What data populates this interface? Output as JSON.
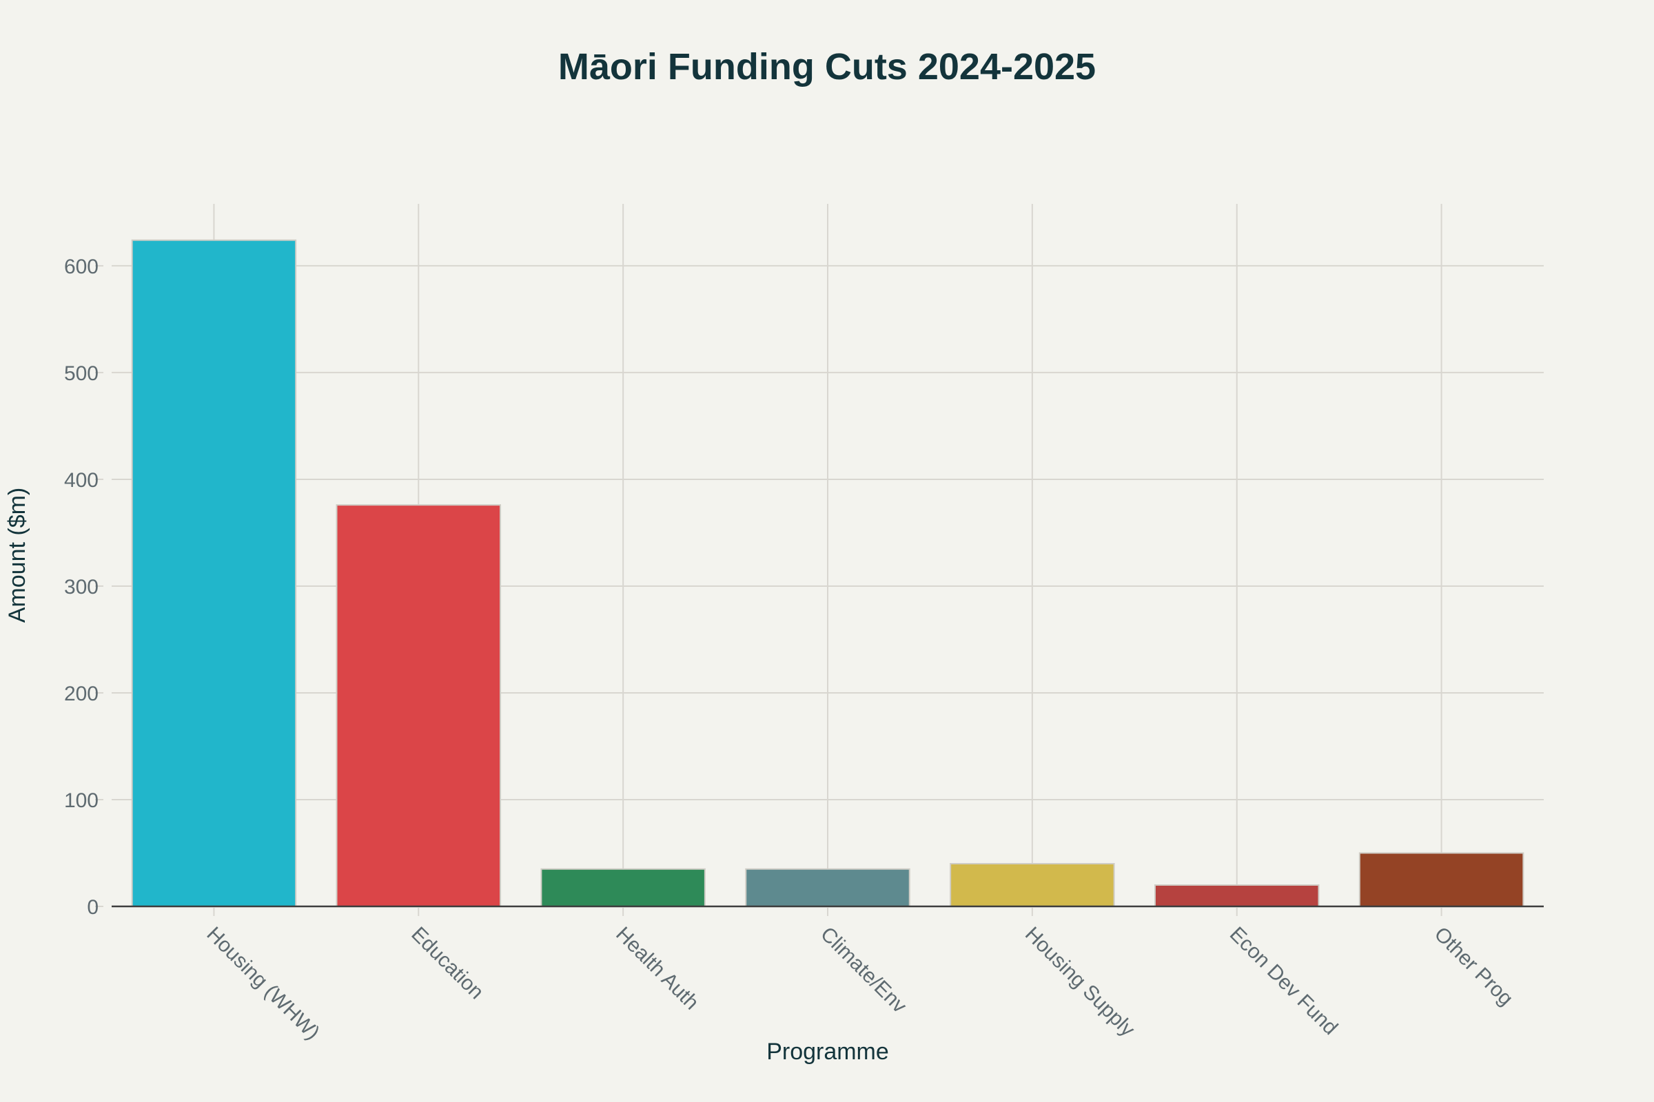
{
  "chart_data": {
    "type": "bar",
    "title": "Māori Funding Cuts 2024-2025",
    "xlabel": "Programme",
    "ylabel": "Amount ($m)",
    "categories": [
      "Housing (WHW)",
      "Education",
      "Health Auth",
      "Climate/Env",
      "Housing Supply",
      "Econ Dev Fund",
      "Other Prog"
    ],
    "values": [
      624,
      376,
      35,
      35,
      40,
      20,
      50
    ],
    "colors": [
      "#21b6cb",
      "#db4548",
      "#2e8a58",
      "#5e8a8f",
      "#d2b94c",
      "#b6423f",
      "#944325"
    ],
    "ylim": [
      0,
      658
    ],
    "yticks": [
      0,
      100,
      200,
      300,
      400,
      500,
      600
    ],
    "grid": true,
    "legend": "none"
  }
}
